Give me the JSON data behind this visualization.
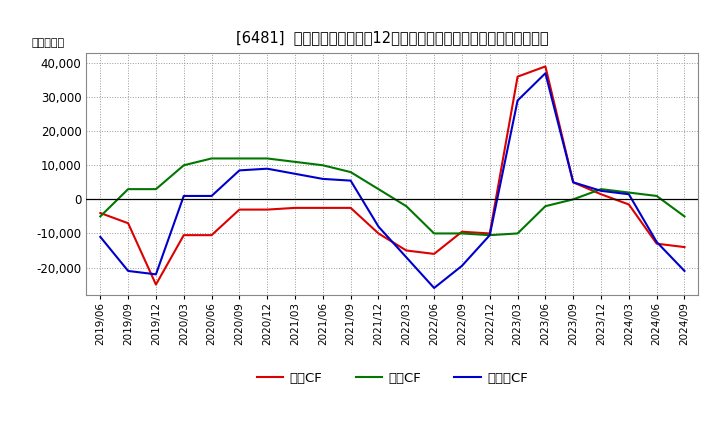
{
  "title": "[6481]  キャッシュフローの12か月移動合計の対前年同期増減額の推移",
  "ylabel": "（百万円）",
  "background_color": "#ffffff",
  "plot_bg_color": "#ffffff",
  "grid_color": "#999999",
  "x_labels": [
    "2019/06",
    "2019/09",
    "2019/12",
    "2020/03",
    "2020/06",
    "2020/09",
    "2020/12",
    "2021/03",
    "2021/06",
    "2021/09",
    "2021/12",
    "2022/03",
    "2022/06",
    "2022/09",
    "2022/12",
    "2023/03",
    "2023/06",
    "2023/09",
    "2023/12",
    "2024/03",
    "2024/06",
    "2024/09"
  ],
  "eigyo_cf": [
    -4000,
    -7000,
    -25000,
    -10500,
    -10500,
    -3000,
    -3000,
    -2500,
    -2500,
    -2500,
    -10000,
    -15000,
    -16000,
    -9500,
    -10000,
    36000,
    39000,
    5000,
    1500,
    -1500,
    -13000,
    -14000
  ],
  "toshi_cf": [
    -5000,
    3000,
    3000,
    10000,
    12000,
    12000,
    12000,
    11000,
    10000,
    8000,
    3000,
    -2000,
    -10000,
    -10000,
    -10500,
    -10000,
    -2000,
    0,
    3000,
    2000,
    1000,
    -5000
  ],
  "free_cf": [
    -11000,
    -21000,
    -22000,
    1000,
    1000,
    8500,
    9000,
    7500,
    6000,
    5500,
    -8000,
    -17000,
    -26000,
    -19500,
    -10500,
    29000,
    37000,
    5000,
    2500,
    1500,
    -12500,
    -21000
  ],
  "eigyo_color": "#dd0000",
  "toshi_color": "#007700",
  "free_color": "#0000cc",
  "ylim": [
    -28000,
    43000
  ],
  "yticks": [
    -20000,
    -10000,
    0,
    10000,
    20000,
    30000,
    40000
  ],
  "legend_labels": [
    "営業CF",
    "投資CF",
    "フリーCF"
  ]
}
